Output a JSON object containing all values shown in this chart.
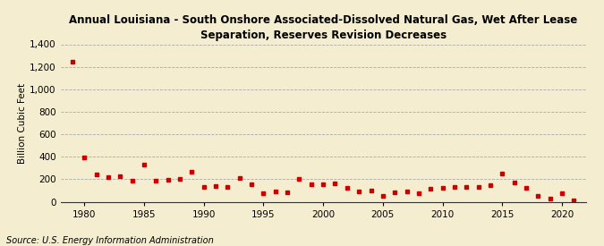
{
  "title": "Annual Louisiana - South Onshore Associated-Dissolved Natural Gas, Wet After Lease\nSeparation, Reserves Revision Decreases",
  "ylabel": "Billion Cubic Feet",
  "source": "Source: U.S. Energy Information Administration",
  "background_color": "#f5edcf",
  "plot_bg_color": "#f5edcf",
  "marker_color": "#cc0000",
  "years": [
    1979,
    1980,
    1981,
    1982,
    1983,
    1984,
    1985,
    1986,
    1987,
    1988,
    1989,
    1990,
    1991,
    1992,
    1993,
    1994,
    1995,
    1996,
    1997,
    1998,
    1999,
    2000,
    2001,
    2002,
    2003,
    2004,
    2005,
    2006,
    2007,
    2008,
    2009,
    2010,
    2011,
    2012,
    2013,
    2014,
    2015,
    2016,
    2017,
    2018,
    2019,
    2020,
    2021
  ],
  "values": [
    1243,
    395,
    240,
    220,
    230,
    185,
    330,
    190,
    195,
    200,
    265,
    130,
    140,
    130,
    210,
    155,
    75,
    90,
    80,
    200,
    155,
    155,
    160,
    120,
    90,
    100,
    55,
    80,
    95,
    75,
    115,
    125,
    130,
    135,
    130,
    150,
    250,
    175,
    120,
    50,
    30,
    75,
    15
  ],
  "xlim": [
    1978,
    2022
  ],
  "ylim": [
    0,
    1400
  ],
  "yticks": [
    0,
    200,
    400,
    600,
    800,
    1000,
    1200,
    1400
  ],
  "xticks": [
    1980,
    1985,
    1990,
    1995,
    2000,
    2005,
    2010,
    2015,
    2020
  ],
  "title_fontsize": 8.5,
  "axis_fontsize": 7.5,
  "source_fontsize": 7.0
}
